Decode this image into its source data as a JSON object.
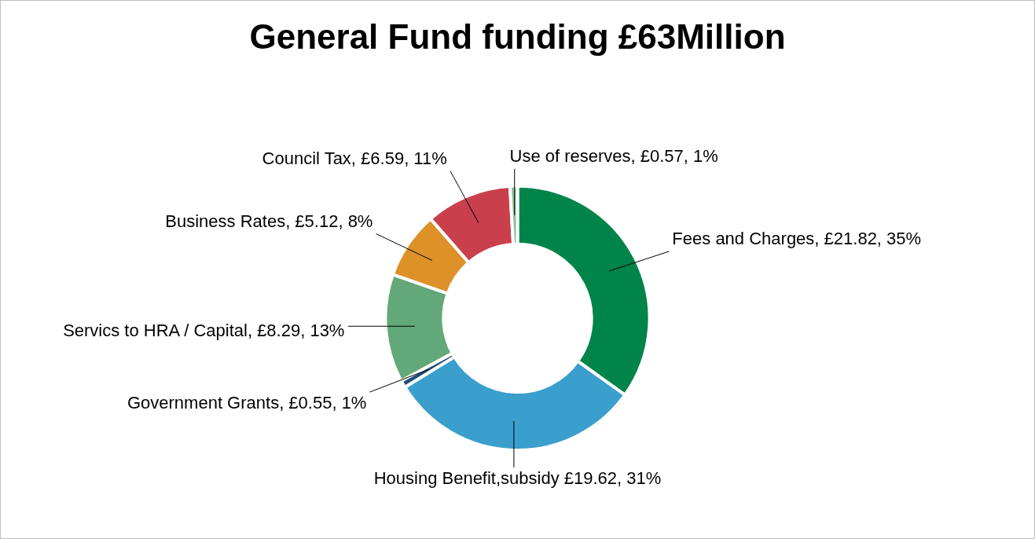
{
  "chart_data": {
    "type": "donut",
    "title": "General Fund funding £63Million",
    "categories": [
      "Fees and Charges",
      "Housing Benefit,subsidy",
      "Government Grants",
      "Servics to HRA / Capital",
      "Business Rates",
      "Council Tax",
      "Use of reserves"
    ],
    "values": [
      21.82,
      19.62,
      0.55,
      8.29,
      5.12,
      6.59,
      0.57
    ],
    "value_labels": [
      "£21.82, 35%",
      "£19.62, 31%",
      "£0.55, 1%",
      "£8.29, 13%",
      "£5.12, 8%",
      "£6.59, 11%",
      "£0.57, 1%"
    ],
    "colors": [
      "#00844a",
      "#3a9fcc",
      "#1f4e79",
      "#63a878",
      "#dd9128",
      "#c9404c",
      "#8fbf9c"
    ],
    "legend": false
  }
}
